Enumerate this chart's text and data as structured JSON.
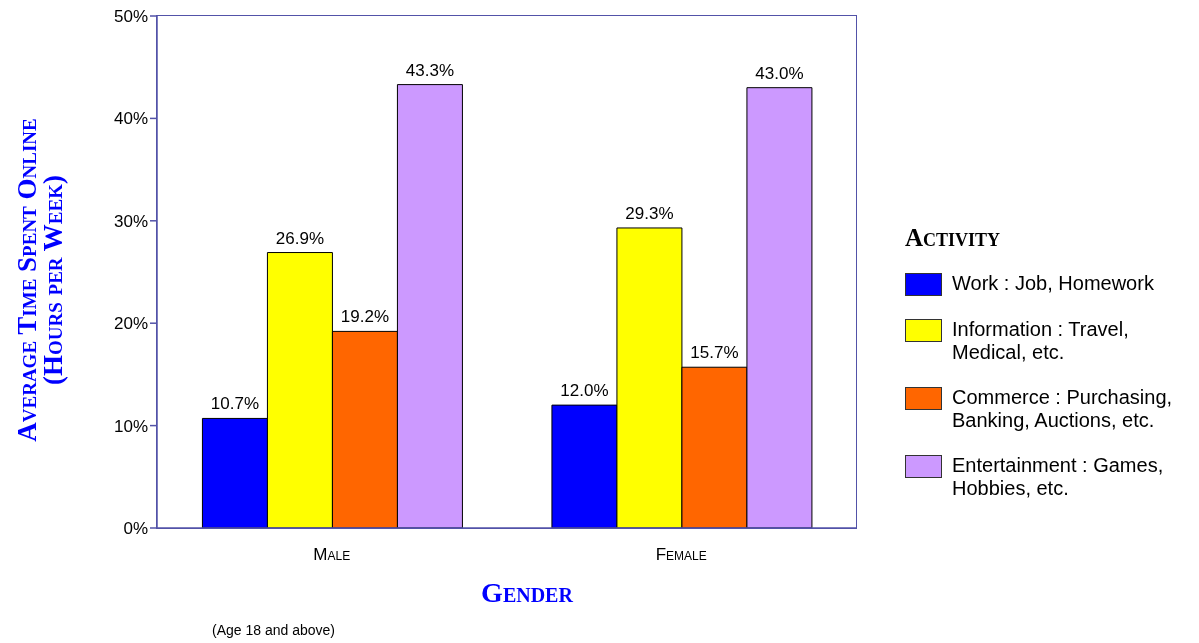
{
  "chart_data": {
    "type": "bar",
    "xlabel": "Gender",
    "ylabel": "Average Time Spent Online (Hours per Week)",
    "legend_title": "Activity",
    "annotations": [
      "(Age 18 and above)"
    ],
    "categories": [
      "Male",
      "Female"
    ],
    "series": [
      {
        "name": "Work : Job, Homework",
        "color": "#0000ff",
        "values": [
          10.7,
          12.0
        ],
        "value_labels": [
          "10.7%",
          "12.0%"
        ]
      },
      {
        "name": "Information : Travel, Medical, etc.",
        "color": "#ffff00",
        "values": [
          26.9,
          29.3
        ],
        "value_labels": [
          "26.9%",
          "29.3%"
        ]
      },
      {
        "name": "Commerce : Purchasing, Banking, Auctions, etc.",
        "color": "#ff6600",
        "values": [
          19.2,
          15.7
        ],
        "value_labels": [
          "19.2%",
          "15.7%"
        ]
      },
      {
        "name": "Entertainment : Games, Hobbies, etc.",
        "color": "#cc99ff",
        "values": [
          43.3,
          43.0
        ],
        "value_labels": [
          "43.3%",
          "43.0%"
        ]
      }
    ],
    "ylim": [
      0,
      50
    ],
    "yticks": [
      {
        "value": 0,
        "label": "0%"
      },
      {
        "value": 10,
        "label": "10%"
      },
      {
        "value": 20,
        "label": "20%"
      },
      {
        "value": 30,
        "label": "30%"
      },
      {
        "value": 40,
        "label": "40%"
      },
      {
        "value": 50,
        "label": "50%"
      }
    ],
    "legend": "right"
  }
}
